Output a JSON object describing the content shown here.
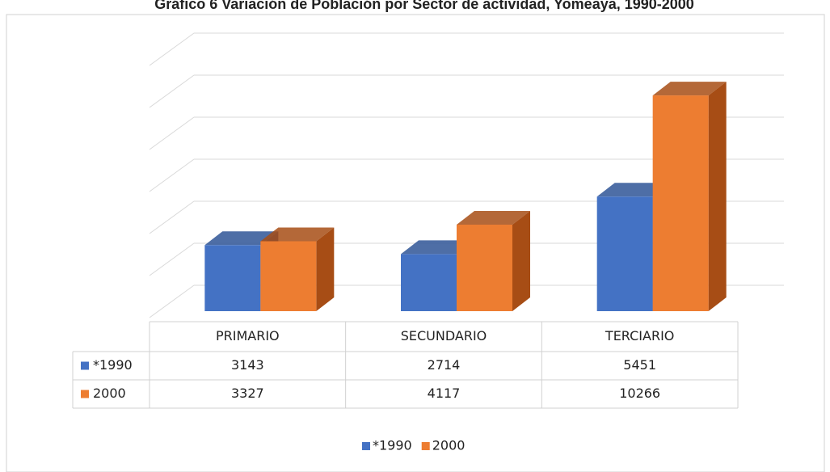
{
  "chart_data": {
    "type": "bar3d",
    "title": "Gráfico 6 Variación de Población por Sector de actividad, Yomeaya, 1990-2000",
    "categories": [
      "PRIMARIO",
      "SECUNDARIO",
      "TERCIARIO"
    ],
    "series": [
      {
        "name": "*1990",
        "color": "#4472c4",
        "side": "#2f5597",
        "values": [
          3143,
          2714,
          5451
        ]
      },
      {
        "name": "2000",
        "color": "#ed7d31",
        "side": "#a74d15",
        "values": [
          3327,
          4117,
          10266
        ]
      }
    ],
    "ylim": [
      0,
      12000
    ],
    "yticks": [
      0,
      2000,
      4000,
      6000,
      8000,
      10000,
      12000
    ],
    "grid": true
  }
}
